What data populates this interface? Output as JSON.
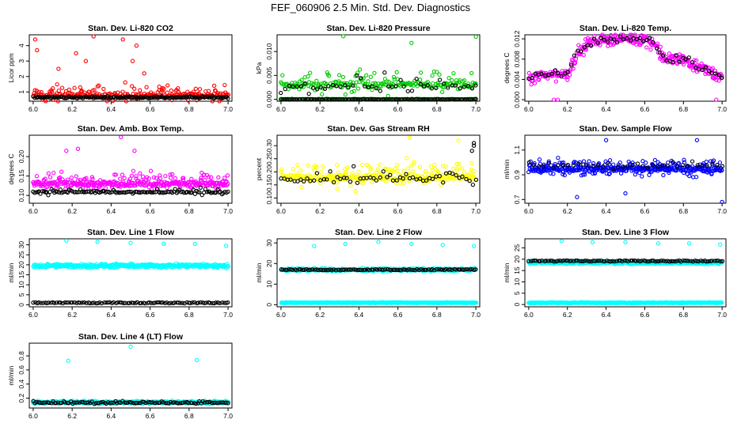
{
  "title": "FEF_060906  2.5 Min. Std. Dev. Diagnostics",
  "colors": {
    "co2": "#ff0000",
    "pressure": "#00cc00",
    "temp": "#ff00ff",
    "rh": "#ffff00",
    "flow": "#0000ff",
    "line": "#00ffff",
    "reference": "#000000"
  },
  "chart_data": [
    {
      "type": "scatter",
      "title": "Stan. Dev. Li-820 CO2",
      "xlabel": "",
      "ylabel": "Licor ppm",
      "xlim": [
        5.98,
        7.02
      ],
      "ylim": [
        0.4,
        4.7
      ],
      "xticks": [
        "6.0",
        "6.2",
        "6.4",
        "6.6",
        "6.8",
        "7.0"
      ],
      "yticks": [
        "1",
        "2",
        "3",
        "4"
      ],
      "series": [
        {
          "color": "co2",
          "pattern": "noisy",
          "base": 0.9,
          "spread": 0.8,
          "count": 260,
          "outliers": [
            [
              6.01,
              4.4
            ],
            [
              6.02,
              3.7
            ],
            [
              6.31,
              4.6
            ],
            [
              6.22,
              3.5
            ],
            [
              6.46,
              4.4
            ],
            [
              6.51,
              3.0
            ],
            [
              6.53,
              4.0
            ],
            [
              6.57,
              2.2
            ],
            [
              6.27,
              3.0
            ],
            [
              6.13,
              2.5
            ]
          ]
        },
        {
          "color": "reference",
          "pattern": "flat",
          "base": 0.65,
          "spread": 0.1,
          "count": 150
        }
      ]
    },
    {
      "type": "scatter",
      "title": "Stan. Dev. Li-820 Pressure",
      "xlabel": "",
      "ylabel": "kPa",
      "xlim": [
        5.98,
        7.02
      ],
      "ylim": [
        -0.0004,
        0.0135
      ],
      "xticks": [
        "6.0",
        "6.2",
        "6.4",
        "6.6",
        "6.8",
        "7.0"
      ],
      "yticks": [
        "0.000",
        "0.005",
        "0.010"
      ],
      "series": [
        {
          "color": "pressure",
          "pattern": "noisy",
          "base": 0.0035,
          "spread": 0.0035,
          "count": 220,
          "outliers": [
            [
              6.32,
              0.0132
            ],
            [
              6.67,
              0.0118
            ],
            [
              7.0,
              0.0131
            ]
          ]
        },
        {
          "color": "pressure",
          "pattern": "flat",
          "base": 0.0,
          "spread": 0.0001,
          "count": 160
        },
        {
          "color": "reference",
          "pattern": "flat",
          "base": 0.0,
          "spread": 0.0001,
          "count": 120
        },
        {
          "color": "reference",
          "pattern": "noisy",
          "base": 0.003,
          "spread": 0.003,
          "count": 50
        }
      ]
    },
    {
      "type": "scatter",
      "title": "Stan. Dev. Li-820 Temp.",
      "xlabel": "",
      "ylabel": "degrees C",
      "xlim": [
        5.98,
        7.02
      ],
      "ylim": [
        -0.0003,
        0.0128
      ],
      "xticks": [
        "6.0",
        "6.2",
        "6.4",
        "6.6",
        "6.8",
        "7.0"
      ],
      "yticks": [
        "0.000",
        "0.004",
        "0.008",
        "0.012"
      ],
      "series": [
        {
          "color": "temp",
          "pattern": "curve",
          "points": [
            [
              6.0,
              0.004
            ],
            [
              6.1,
              0.005
            ],
            [
              6.2,
              0.005
            ],
            [
              6.25,
              0.009
            ],
            [
              6.3,
              0.011
            ],
            [
              6.4,
              0.012
            ],
            [
              6.5,
              0.012
            ],
            [
              6.6,
              0.012
            ],
            [
              6.65,
              0.011
            ],
            [
              6.7,
              0.008
            ],
            [
              6.8,
              0.008
            ],
            [
              6.9,
              0.006
            ],
            [
              7.0,
              0.0045
            ]
          ],
          "spread": 0.0018,
          "count": 320,
          "outliers": [
            [
              6.13,
              0.0
            ],
            [
              6.15,
              0.0
            ],
            [
              6.97,
              0.0
            ]
          ]
        },
        {
          "color": "reference",
          "pattern": "curve",
          "points": [
            [
              6.0,
              0.004
            ],
            [
              6.1,
              0.005
            ],
            [
              6.2,
              0.005
            ],
            [
              6.25,
              0.009
            ],
            [
              6.3,
              0.011
            ],
            [
              6.4,
              0.012
            ],
            [
              6.5,
              0.012
            ],
            [
              6.6,
              0.012
            ],
            [
              6.65,
              0.011
            ],
            [
              6.7,
              0.008
            ],
            [
              6.8,
              0.008
            ],
            [
              6.9,
              0.006
            ],
            [
              7.0,
              0.0045
            ]
          ],
          "spread": 0.0012,
          "count": 60
        }
      ]
    },
    {
      "type": "scatter",
      "title": "Stan. Dev. Amb. Box Temp.",
      "xlabel": "",
      "ylabel": "degrees C",
      "xlim": [
        5.98,
        7.02
      ],
      "ylim": [
        0.08,
        0.255
      ],
      "xticks": [
        "6.0",
        "6.2",
        "6.4",
        "6.6",
        "6.8",
        "7.0"
      ],
      "yticks": [
        "0.10",
        "0.15",
        "0.20"
      ],
      "series": [
        {
          "color": "temp",
          "pattern": "noisy",
          "base": 0.135,
          "spread": 0.035,
          "count": 360,
          "outliers": [
            [
              6.45,
              0.25
            ],
            [
              6.23,
              0.22
            ],
            [
              6.17,
              0.215
            ],
            [
              6.52,
              0.215
            ]
          ]
        },
        {
          "color": "reference",
          "pattern": "noisy",
          "base": 0.11,
          "spread": 0.012,
          "count": 130
        }
      ]
    },
    {
      "type": "scatter",
      "title": "Stan. Dev. Gas Stream RH",
      "xlabel": "",
      "ylabel": "percent",
      "xlim": [
        5.98,
        7.02
      ],
      "ylim": [
        0.08,
        0.34
      ],
      "xticks": [
        "6.0",
        "6.2",
        "6.4",
        "6.6",
        "6.8",
        "7.0"
      ],
      "yticks": [
        "0.10",
        "0.15",
        "0.20",
        "0.25",
        "0.30"
      ],
      "series": [
        {
          "color": "rh",
          "pattern": "noisy",
          "base": 0.19,
          "spread": 0.07,
          "count": 300,
          "outliers": [
            [
              6.66,
              0.33
            ],
            [
              6.91,
              0.32
            ]
          ]
        },
        {
          "color": "reference",
          "pattern": "noisy",
          "base": 0.18,
          "spread": 0.05,
          "count": 60,
          "outliers": [
            [
              6.99,
              0.31
            ],
            [
              6.99,
              0.3
            ],
            [
              6.98,
              0.28
            ]
          ]
        }
      ]
    },
    {
      "type": "scatter",
      "title": "Stan. Dev. Sample Flow",
      "xlabel": "",
      "ylabel": "ml/min",
      "xlim": [
        5.98,
        7.02
      ],
      "ylim": [
        0.67,
        1.22
      ],
      "xticks": [
        "6.0",
        "6.2",
        "6.4",
        "6.6",
        "6.8",
        "7.0"
      ],
      "yticks": [
        "0.7",
        "0.9",
        "1.1"
      ],
      "series": [
        {
          "color": "flow",
          "pattern": "noisy",
          "base": 0.96,
          "spread": 0.1,
          "count": 400,
          "outliers": [
            [
              7.0,
              0.68
            ],
            [
              6.4,
              1.18
            ],
            [
              6.25,
              0.72
            ],
            [
              6.5,
              0.75
            ],
            [
              6.87,
              1.18
            ]
          ]
        },
        {
          "color": "reference",
          "pattern": "noisy",
          "base": 0.98,
          "spread": 0.05,
          "count": 40
        }
      ]
    },
    {
      "type": "scatter",
      "title": "Stan. Dev. Line 1 Flow",
      "xlabel": "",
      "ylabel": "ml/min",
      "xlim": [
        5.98,
        7.02
      ],
      "ylim": [
        -1,
        33
      ],
      "xticks": [
        "6.0",
        "6.2",
        "6.4",
        "6.6",
        "6.8",
        "7.0"
      ],
      "yticks": [
        "0",
        "5",
        "10",
        "15",
        "20",
        "25",
        "30"
      ],
      "series": [
        {
          "color": "line",
          "pattern": "flat",
          "base": 19.5,
          "spread": 1.4,
          "count": 420,
          "outliers": [
            [
              6.17,
              32
            ],
            [
              6.33,
              31.5
            ],
            [
              6.5,
              31
            ],
            [
              6.67,
              30.5
            ],
            [
              6.83,
              30.5
            ],
            [
              6.99,
              29.5
            ]
          ]
        },
        {
          "color": "reference",
          "pattern": "grid",
          "base": 1.0,
          "count": 100
        }
      ]
    },
    {
      "type": "scatter",
      "title": "Stan. Dev. Line 2 Flow",
      "xlabel": "",
      "ylabel": "ml/min",
      "xlim": [
        5.98,
        7.02
      ],
      "ylim": [
        -1,
        32
      ],
      "xticks": [
        "6.0",
        "6.2",
        "6.4",
        "6.6",
        "6.8",
        "7.0"
      ],
      "yticks": [
        "0",
        "10",
        "20",
        "30"
      ],
      "series": [
        {
          "color": "line",
          "pattern": "flat",
          "base": 17.0,
          "spread": 1.0,
          "count": 400,
          "outliers": [
            [
              6.17,
              28.5
            ],
            [
              6.33,
              29.5
            ],
            [
              6.5,
              30.5
            ],
            [
              6.67,
              29.5
            ],
            [
              6.83,
              29
            ],
            [
              6.99,
              28.5
            ]
          ]
        },
        {
          "color": "line",
          "pattern": "flat",
          "base": 1.0,
          "spread": 0.3,
          "count": 400
        },
        {
          "color": "reference",
          "pattern": "grid",
          "base": 17.0,
          "count": 100
        }
      ]
    },
    {
      "type": "scatter",
      "title": "Stan. Dev. Line 3 Flow",
      "xlabel": "",
      "ylabel": "ml/min",
      "xlim": [
        5.98,
        7.02
      ],
      "ylim": [
        -1,
        29
      ],
      "xticks": [
        "6.0",
        "6.2",
        "6.4",
        "6.6",
        "6.8",
        "7.0"
      ],
      "yticks": [
        "0",
        "5",
        "10",
        "15",
        "20",
        "25"
      ],
      "series": [
        {
          "color": "line",
          "pattern": "flat",
          "base": 18.5,
          "spread": 0.9,
          "count": 400,
          "outliers": [
            [
              6.17,
              28
            ],
            [
              6.33,
              27.5
            ],
            [
              6.5,
              27.5
            ],
            [
              6.67,
              27
            ],
            [
              6.83,
              27
            ],
            [
              6.99,
              26.5
            ]
          ]
        },
        {
          "color": "line",
          "pattern": "flat",
          "base": 0.8,
          "spread": 0.3,
          "count": 400
        },
        {
          "color": "reference",
          "pattern": "grid",
          "base": 19.2,
          "count": 100
        }
      ]
    },
    {
      "type": "scatter",
      "title": "Stan. Dev. Line 4 (LT) Flow",
      "xlabel": "",
      "ylabel": "ml/min",
      "xlim": [
        5.98,
        7.02
      ],
      "ylim": [
        0.06,
        0.98
      ],
      "xticks": [
        "6.0",
        "6.2",
        "6.4",
        "6.6",
        "6.8",
        "7.0"
      ],
      "yticks": [
        "0.2",
        "0.4",
        "0.6",
        "0.8"
      ],
      "series": [
        {
          "color": "line",
          "pattern": "flat",
          "base": 0.14,
          "spread": 0.03,
          "count": 400,
          "outliers": [
            [
              6.18,
              0.73
            ],
            [
              6.5,
              0.93
            ],
            [
              6.84,
              0.74
            ]
          ]
        },
        {
          "color": "reference",
          "pattern": "noisy",
          "base": 0.14,
          "spread": 0.035,
          "count": 110
        }
      ]
    }
  ]
}
